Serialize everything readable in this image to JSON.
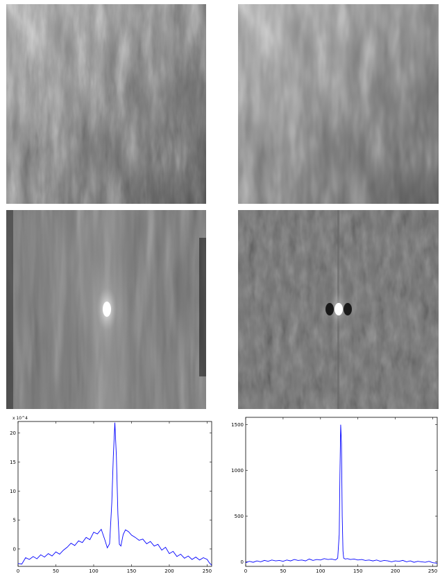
{
  "panels": {
    "top_left": {
      "kind": "grayscale image"
    },
    "top_right": {
      "kind": "grayscale image"
    },
    "middle_left": {
      "kind": "grayscale image"
    },
    "middle_right": {
      "kind": "grayscale image"
    }
  },
  "chart_data": [
    {
      "type": "line",
      "title": "",
      "xlabel": "",
      "ylabel": "",
      "y_exponent_label": "x 10^4",
      "xlim": [
        0,
        256
      ],
      "ylim": [
        -3,
        22
      ],
      "xticks": [
        0,
        50,
        100,
        150,
        200,
        250
      ],
      "yticks": [
        0,
        5,
        10,
        15,
        20
      ],
      "line_color": "#0000ff",
      "grid": false,
      "series": [
        {
          "x": [
            0,
            5,
            10,
            15,
            20,
            25,
            30,
            35,
            40,
            45,
            50,
            55,
            60,
            65,
            70,
            75,
            80,
            85,
            90,
            95,
            100,
            105,
            110,
            115,
            118,
            121,
            124,
            126,
            128,
            130,
            132,
            134,
            136,
            139,
            142,
            146,
            150,
            155,
            160,
            165,
            170,
            175,
            180,
            185,
            190,
            195,
            200,
            205,
            210,
            215,
            220,
            225,
            230,
            235,
            240,
            245,
            250,
            253,
            256
          ],
          "y": [
            -2.5,
            -2.6,
            -1.5,
            -1.8,
            -1.3,
            -1.7,
            -1.0,
            -1.4,
            -0.8,
            -1.2,
            -0.5,
            -0.9,
            -0.2,
            0.3,
            1.0,
            0.6,
            1.4,
            1.1,
            2.0,
            1.6,
            2.9,
            2.6,
            3.4,
            1.5,
            0.2,
            0.9,
            8.0,
            16.0,
            21.8,
            16.0,
            6.0,
            0.8,
            0.5,
            2.5,
            3.3,
            3.0,
            2.4,
            2.0,
            1.5,
            1.7,
            0.9,
            1.3,
            0.5,
            0.8,
            -0.2,
            0.3,
            -0.8,
            -0.4,
            -1.3,
            -0.9,
            -1.6,
            -1.2,
            -1.8,
            -1.4,
            -1.9,
            -1.5,
            -1.8,
            -2.4,
            -2.8
          ]
        }
      ]
    },
    {
      "type": "line",
      "title": "",
      "xlabel": "",
      "ylabel": "",
      "xlim": [
        0,
        256
      ],
      "ylim": [
        -50,
        1580
      ],
      "xticks": [
        0,
        50,
        100,
        150,
        200,
        250
      ],
      "yticks": [
        0,
        500,
        1000,
        1500
      ],
      "line_color": "#0000ff",
      "grid": false,
      "series": [
        {
          "x": [
            0,
            5,
            10,
            15,
            20,
            25,
            30,
            35,
            40,
            45,
            50,
            55,
            60,
            65,
            70,
            75,
            80,
            85,
            90,
            95,
            100,
            105,
            110,
            115,
            120,
            123,
            125,
            126,
            127,
            128,
            129,
            130,
            131,
            133,
            136,
            140,
            145,
            150,
            155,
            160,
            165,
            170,
            175,
            180,
            185,
            190,
            195,
            200,
            205,
            210,
            215,
            220,
            225,
            230,
            235,
            240,
            245,
            250,
            256
          ],
          "y": [
            -10,
            5,
            -5,
            10,
            0,
            15,
            5,
            20,
            10,
            15,
            5,
            20,
            10,
            25,
            15,
            20,
            10,
            30,
            15,
            25,
            20,
            35,
            25,
            30,
            20,
            40,
            300,
            950,
            1500,
            1300,
            500,
            120,
            40,
            30,
            35,
            25,
            30,
            20,
            25,
            15,
            20,
            10,
            20,
            5,
            15,
            10,
            0,
            10,
            5,
            15,
            0,
            10,
            -5,
            5,
            0,
            -5,
            5,
            -10,
            -15
          ]
        }
      ]
    }
  ]
}
